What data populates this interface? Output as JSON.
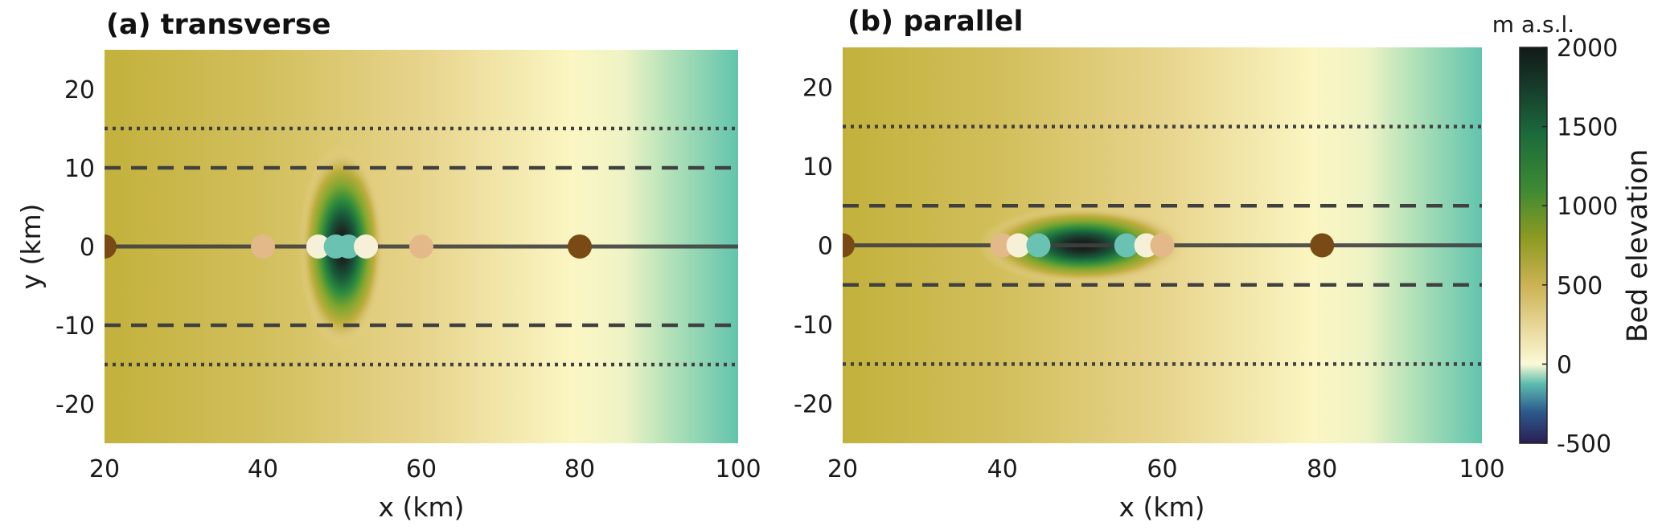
{
  "chart_data": [
    {
      "type": "heatmap",
      "title": "(a) transverse",
      "xlabel": "x (km)",
      "ylabel": "y (km)",
      "xlim": [
        20,
        100
      ],
      "ylim": [
        -25,
        25
      ],
      "xticks": [
        20,
        40,
        60,
        80,
        100
      ],
      "yticks": [
        20,
        10,
        0,
        -10,
        -20
      ],
      "bump": {
        "center": [
          50,
          0
        ],
        "peak_elevation": 2000,
        "orientation": "transverse"
      },
      "lines": [
        {
          "style": "solid",
          "y": 0
        },
        {
          "style": "dashed",
          "y": 10
        },
        {
          "style": "dashed",
          "y": -10
        },
        {
          "style": "dotted",
          "y": 15
        },
        {
          "style": "dotted",
          "y": -15
        }
      ],
      "points": [
        {
          "x": 20,
          "y": 0,
          "color": "#7a4a14"
        },
        {
          "x": 40,
          "y": 0,
          "color": "#e3b98a"
        },
        {
          "x": 47,
          "y": 0,
          "color": "#f7f0d8"
        },
        {
          "x": 49.2,
          "y": 0,
          "color": "#69c2b2"
        },
        {
          "x": 50.8,
          "y": 0,
          "color": "#69c2b2"
        },
        {
          "x": 53,
          "y": 0,
          "color": "#f7f0d8"
        },
        {
          "x": 60,
          "y": 0,
          "color": "#e3b98a"
        },
        {
          "x": 80,
          "y": 0,
          "color": "#7a4a14"
        }
      ]
    },
    {
      "type": "heatmap",
      "title": "(b) parallel",
      "xlabel": "x (km)",
      "ylabel": "",
      "xlim": [
        20,
        100
      ],
      "ylim": [
        -25,
        25
      ],
      "xticks": [
        20,
        40,
        60,
        80,
        100
      ],
      "yticks": [
        20,
        10,
        0,
        -10,
        -20
      ],
      "bump": {
        "center": [
          50,
          0
        ],
        "peak_elevation": 2000,
        "orientation": "parallel"
      },
      "lines": [
        {
          "style": "solid",
          "y": 0
        },
        {
          "style": "dashed",
          "y": 5
        },
        {
          "style": "dashed",
          "y": -5
        },
        {
          "style": "dotted",
          "y": 15
        },
        {
          "style": "dotted",
          "y": -15
        }
      ],
      "points": [
        {
          "x": 20,
          "y": 0,
          "color": "#7a4a14"
        },
        {
          "x": 40,
          "y": 0,
          "color": "#e3b98a"
        },
        {
          "x": 42,
          "y": 0,
          "color": "#f7f0d8"
        },
        {
          "x": 44.5,
          "y": 0,
          "color": "#69c2b2"
        },
        {
          "x": 55.5,
          "y": 0,
          "color": "#69c2b2"
        },
        {
          "x": 58,
          "y": 0,
          "color": "#f7f0d8"
        },
        {
          "x": 60,
          "y": 0,
          "color": "#e3b98a"
        },
        {
          "x": 80,
          "y": 0,
          "color": "#7a4a14"
        }
      ]
    }
  ],
  "colorbar": {
    "label": "Bed elevation",
    "unit": "m a.s.l.",
    "ticks": [
      2000,
      1500,
      1000,
      500,
      0,
      -500
    ],
    "range": [
      -500,
      2000
    ]
  },
  "colors": {
    "background_west": "#c3b13c",
    "background_mid": "#e7d48c",
    "background_light": "#fbf6c3",
    "background_east": "#62c4ad",
    "bump_peak": "#1b2a22",
    "lines": "#404040"
  }
}
